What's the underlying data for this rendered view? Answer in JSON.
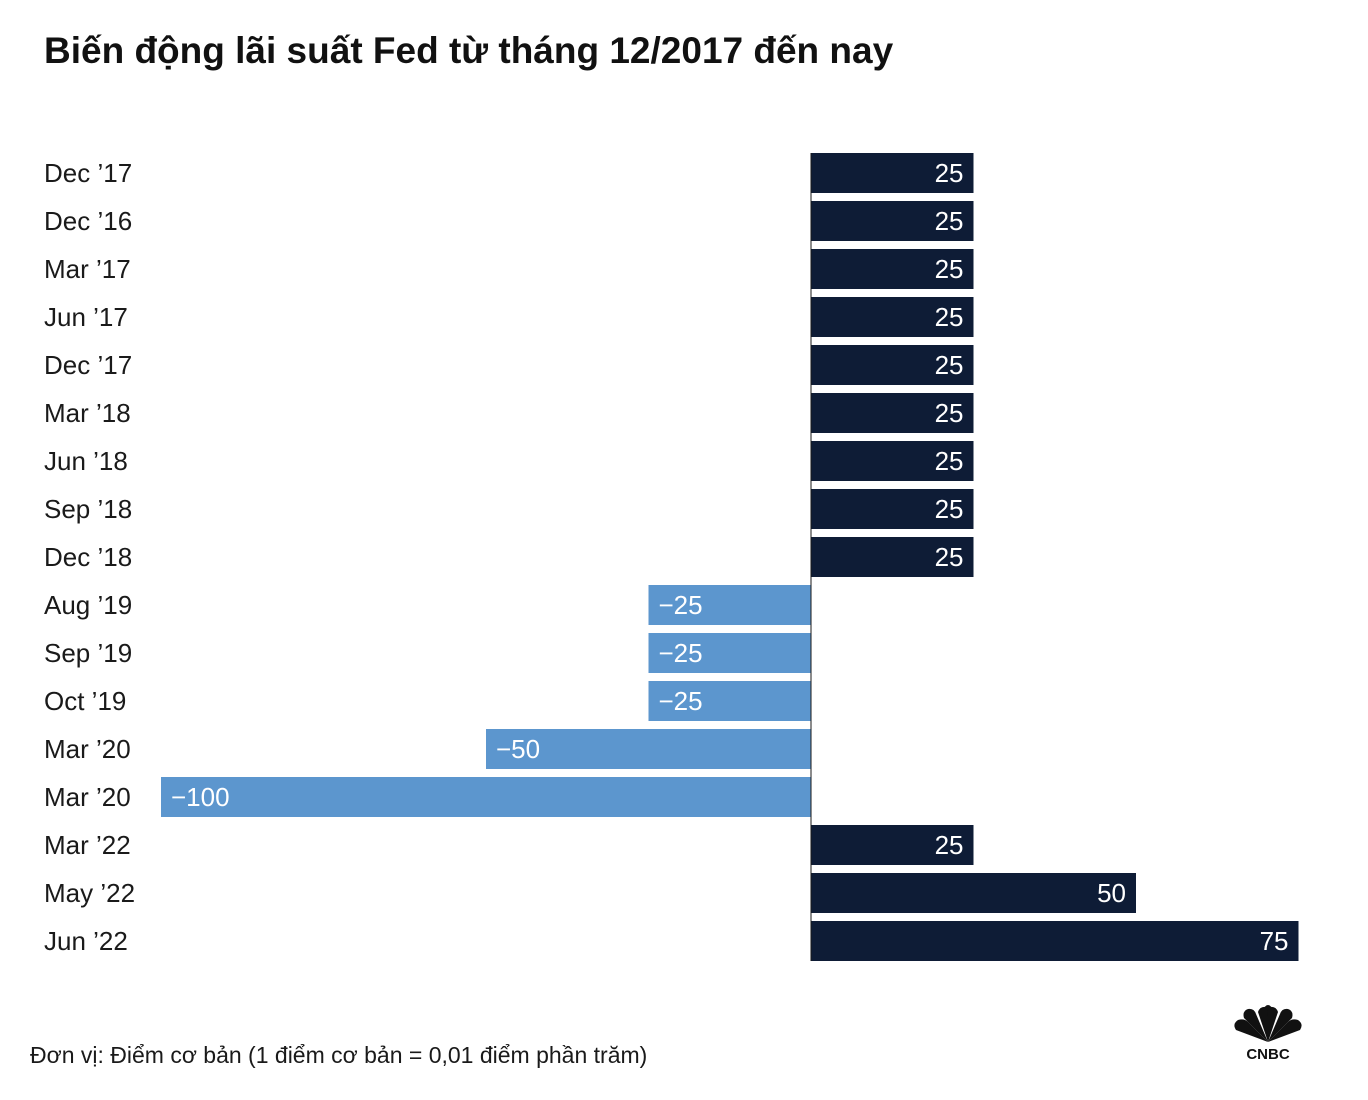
{
  "chart_data": {
    "type": "bar",
    "orientation": "horizontal",
    "title": "Biến động lãi suất Fed từ tháng 12/2017 đến nay",
    "categories": [
      "Dec ’17",
      "Dec ’16",
      "Mar ’17",
      "Jun ’17",
      "Dec ’17",
      "Mar ’18",
      "Jun ’18",
      "Sep ’18",
      "Dec ’18",
      "Aug ’19",
      "Sep ’19",
      "Oct ’19",
      "Mar ’20",
      "Mar ’20",
      "Mar ’22",
      "May ’22",
      "Jun ’22"
    ],
    "values": [
      25,
      25,
      25,
      25,
      25,
      25,
      25,
      25,
      25,
      -25,
      -25,
      -25,
      -50,
      -100,
      25,
      50,
      75
    ],
    "value_labels": [
      "25",
      "25",
      "25",
      "25",
      "25",
      "25",
      "25",
      "25",
      "25",
      "−25",
      "−25",
      "−25",
      "−50",
      "−100",
      "25",
      "50",
      "75"
    ],
    "xlim": [
      -100,
      75
    ],
    "xlabel": "",
    "ylabel": "",
    "grid": false,
    "legend": "none",
    "colors": {
      "positive": "#0e1c36",
      "negative": "#5c96ce",
      "axis": "#1a1a1a"
    }
  },
  "footnote": "Đơn vị: Điểm cơ bản (1 điểm cơ bản = 0,01 điểm phần trăm)",
  "logo": {
    "icon": "peacock-icon",
    "text": "CNBC"
  }
}
